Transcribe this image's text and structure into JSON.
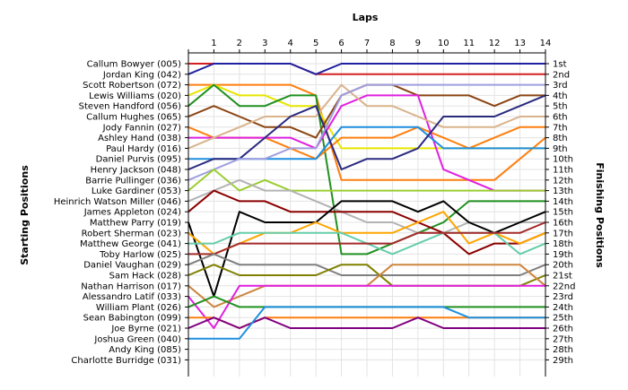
{
  "chart_data": {
    "type": "line",
    "title": "",
    "xlabel": "Laps",
    "ylabel_left": "Starting Positions",
    "ylabel_right": "Finishing Positions",
    "x_ticks": [
      1,
      2,
      3,
      4,
      5,
      6,
      7,
      8,
      9,
      10,
      11,
      12,
      13,
      14
    ],
    "xlim": [
      0,
      14
    ],
    "ylim": [
      1,
      29
    ],
    "grid": true,
    "start_labels": [
      "Callum Bowyer (005)",
      "Jordan King (042)",
      "Scott Robertson (072)",
      "Lewis Williams (020)",
      "Steven Handford (056)",
      "Callum Hughes (065)",
      "Jody Fannin (027)",
      "Ashley Hand (038)",
      "Paul Hardy (016)",
      "Daniel Purvis (095)",
      "Henry Jackson (048)",
      "Barrie Pullinger (036)",
      "Luke Gardiner (053)",
      "Heinrich Watson Miller (046)",
      "James Appleton (024)",
      "Matthew Parry (019)",
      "Robert Sherman (023)",
      "Matthew George (041)",
      "Toby Harlow (025)",
      "Daniel Vaughan (029)",
      "Sam Hack (028)",
      "Nathan Harrison (017)",
      "Alessandro Latif (033)",
      "William Plant (026)",
      "Sean Babington (099)",
      "Joe Byrne (021)",
      "Joshua Green (040)",
      "Andy King (085)",
      "Charlotte Burridge (031)"
    ],
    "finish_labels": [
      "1st",
      "2nd",
      "3rd",
      "4th",
      "5th",
      "6th",
      "7th",
      "8th",
      "9th",
      "10th",
      "11th",
      "12th",
      "13th",
      "14th",
      "15th",
      "16th",
      "17th",
      "18th",
      "19th",
      "20th",
      "21st",
      "22nd",
      "23rd",
      "24th",
      "25th",
      "26th",
      "27th",
      "28th",
      "29th"
    ],
    "series": [
      {
        "color": "#d62020",
        "values": [
          1,
          1,
          1,
          1,
          1,
          2,
          2,
          2,
          2,
          2,
          2,
          2,
          2,
          2,
          2
        ]
      },
      {
        "color": "#2020a0",
        "values": [
          2,
          1,
          1,
          1,
          1,
          2,
          1,
          1,
          1,
          1,
          1,
          1,
          1,
          1,
          1
        ]
      },
      {
        "color": "#ff7f0e",
        "values": [
          3,
          3,
          3,
          3,
          3,
          4,
          12,
          12,
          12,
          12,
          12,
          12,
          12,
          10,
          8
        ]
      },
      {
        "color": "#e6e600",
        "values": [
          4,
          3,
          4,
          4,
          5,
          5,
          9,
          9,
          9,
          9,
          9,
          9,
          9,
          9,
          9
        ]
      },
      {
        "color": "#209020",
        "values": [
          5,
          3,
          5,
          5,
          4,
          4,
          19,
          19,
          18,
          17,
          16,
          14,
          14,
          14,
          14
        ]
      },
      {
        "color": "#8b4513",
        "values": [
          6,
          5,
          6,
          7,
          7,
          8,
          4,
          3,
          3,
          4,
          4,
          4,
          5,
          4,
          4
        ]
      },
      {
        "color": "#ff7f0e",
        "values": [
          7,
          8,
          8,
          8,
          9,
          10,
          8,
          8,
          8,
          7,
          8,
          9,
          8,
          7,
          7
        ]
      },
      {
        "color": "#e020e0",
        "values": [
          8,
          8,
          8,
          8,
          8,
          9,
          5,
          4,
          4,
          4,
          11,
          12,
          13,
          13,
          13
        ]
      },
      {
        "color": "#d9b38c",
        "values": [
          9,
          8,
          7,
          6,
          6,
          6,
          3,
          5,
          5,
          6,
          7,
          7,
          7,
          6,
          6
        ]
      },
      {
        "color": "#1f8fdf",
        "values": [
          10,
          10,
          10,
          10,
          10,
          10,
          7,
          7,
          7,
          7,
          9,
          9,
          9,
          9,
          9
        ]
      },
      {
        "color": "#2a2a80",
        "values": [
          11,
          10,
          10,
          8,
          6,
          5,
          11,
          10,
          10,
          9,
          6,
          6,
          6,
          5,
          4
        ]
      },
      {
        "color": "#9f9fdf",
        "values": [
          12,
          11,
          10,
          10,
          9,
          9,
          4,
          3,
          3,
          3,
          3,
          3,
          3,
          3,
          3
        ]
      },
      {
        "color": "#9acd32",
        "values": [
          13,
          11,
          13,
          12,
          13,
          13,
          13,
          13,
          13,
          13,
          13,
          13,
          13,
          13,
          13
        ]
      },
      {
        "color": "#b3b3b3",
        "values": [
          14,
          13,
          12,
          13,
          13,
          14,
          15,
          16,
          16,
          17,
          17,
          16,
          16,
          16,
          16
        ]
      },
      {
        "color": "#8b0000",
        "values": [
          15,
          13,
          14,
          14,
          15,
          15,
          15,
          15,
          15,
          16,
          17,
          19,
          18,
          18,
          17
        ]
      },
      {
        "color": "#000000",
        "values": [
          16,
          23,
          15,
          16,
          16,
          16,
          14,
          14,
          14,
          15,
          14,
          16,
          17,
          16,
          15
        ]
      },
      {
        "color": "#ffa500",
        "values": [
          17,
          19,
          18,
          17,
          17,
          16,
          17,
          17,
          17,
          16,
          15,
          18,
          17,
          18,
          17
        ]
      },
      {
        "color": "#66cdaa",
        "values": [
          18,
          18,
          17,
          17,
          17,
          17,
          17,
          18,
          19,
          18,
          17,
          17,
          17,
          19,
          18
        ]
      },
      {
        "color": "#a52a2a",
        "values": [
          19,
          19,
          18,
          18,
          18,
          18,
          18,
          18,
          18,
          17,
          17,
          17,
          17,
          17,
          16
        ]
      },
      {
        "color": "#7f7f7f",
        "values": [
          20,
          19,
          20,
          20,
          20,
          20,
          21,
          21,
          21,
          21,
          21,
          21,
          21,
          21,
          20
        ]
      },
      {
        "color": "#808000",
        "values": [
          21,
          20,
          21,
          21,
          21,
          21,
          20,
          20,
          22,
          22,
          22,
          22,
          22,
          22,
          21
        ]
      },
      {
        "color": "#cd853f",
        "values": [
          22,
          24,
          23,
          22,
          22,
          22,
          22,
          22,
          20,
          20,
          20,
          20,
          20,
          20,
          22
        ]
      },
      {
        "color": "#e020e0",
        "values": [
          23,
          26,
          22,
          22,
          22,
          22,
          22,
          22,
          22,
          22,
          22,
          22,
          22,
          22,
          22
        ]
      },
      {
        "color": "#209020",
        "values": [
          24,
          23,
          24,
          24,
          24,
          24,
          24,
          24,
          24,
          24,
          24,
          24,
          24,
          24,
          24
        ]
      },
      {
        "color": "#ff7f0e",
        "values": [
          25,
          25,
          26,
          25,
          25,
          25,
          25,
          25,
          25,
          25,
          25,
          25,
          25,
          25,
          25
        ]
      },
      {
        "color": "#800080",
        "values": [
          26,
          25,
          26,
          25,
          26,
          26,
          26,
          26,
          26,
          25,
          26,
          26,
          26,
          26,
          26
        ]
      },
      {
        "color": "#1f8fdf",
        "values": [
          27,
          27,
          27,
          24,
          24,
          24,
          24,
          24,
          24,
          24,
          24,
          25,
          25,
          25,
          25
        ]
      }
    ]
  }
}
